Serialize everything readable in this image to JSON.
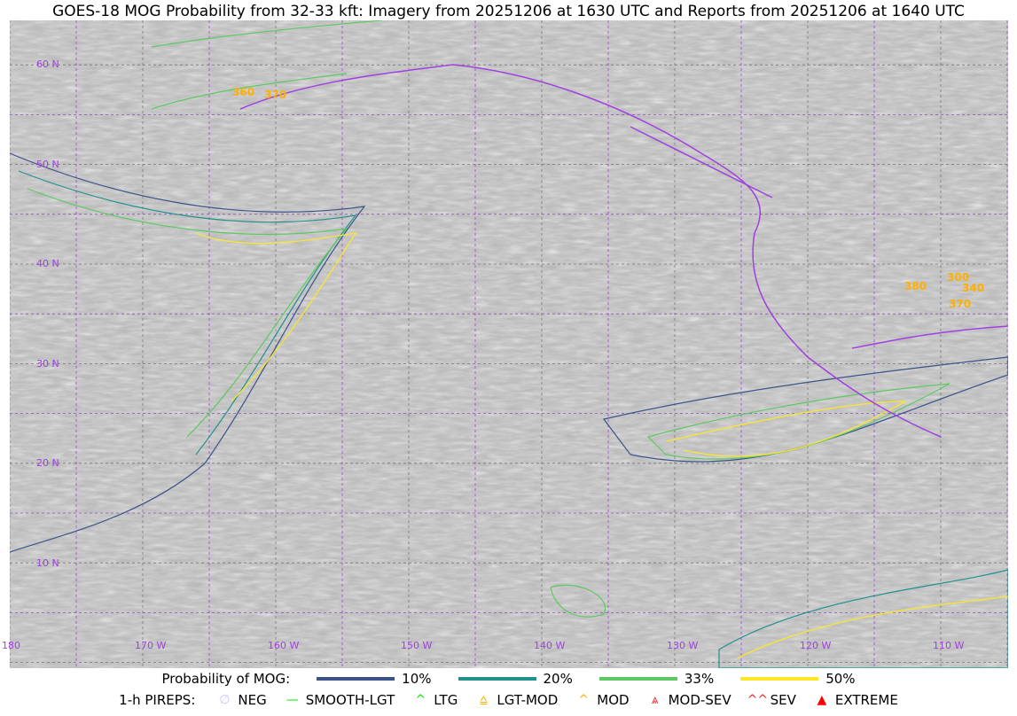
{
  "title": "GOES-18 MOG Probability from 32-33 kft: Imagery from 20251206 at 1630 UTC and Reports from 20251206 at 1640 UTC",
  "lat_labels": [
    "60 N",
    "50 N",
    "40 N",
    "30 N",
    "20 N",
    "10 N"
  ],
  "lon_labels": [
    "180",
    "170 W",
    "160 W",
    "150 W",
    "140 W",
    "130 W",
    "120 W",
    "110 W"
  ],
  "reports": [
    {
      "alt": "360",
      "type": "MOD"
    },
    {
      "alt": "370",
      "type": "MOD"
    },
    {
      "alt": "380",
      "type": "MOD"
    },
    {
      "alt": "300",
      "type": "LGT-MOD"
    },
    {
      "alt": "340",
      "type": "LGT-MOD"
    },
    {
      "alt": "370",
      "type": "MOD"
    }
  ],
  "legend": {
    "prob_label": "Probability of MOG:",
    "levels": [
      {
        "label": "10%",
        "color": "#3b528b"
      },
      {
        "label": "20%",
        "color": "#21918c"
      },
      {
        "label": "33%",
        "color": "#5ec962"
      },
      {
        "label": "50%",
        "color": "#fde725"
      }
    ],
    "pireps_label": "1-h PIREPS:",
    "pireps": [
      {
        "label": "NEG",
        "color": "#c8c8ff",
        "icon": "neg-icon"
      },
      {
        "label": "SMOOTH-LGT",
        "color": "#00ee00",
        "icon": "line-icon"
      },
      {
        "label": "LTG",
        "color": "#00ee00",
        "icon": "caret-icon"
      },
      {
        "label": "LGT-MOD",
        "color": "#ffb000",
        "icon": "caret-bar-icon"
      },
      {
        "label": "MOD",
        "color": "#ffb000",
        "icon": "caret-icon"
      },
      {
        "label": "MOD-SEV",
        "color": "#ff2020",
        "icon": "double-caret-bar-icon"
      },
      {
        "label": "SEV",
        "color": "#ff2020",
        "icon": "double-caret-icon"
      },
      {
        "label": "EXTREME",
        "color": "#ff0000",
        "icon": "triangle-icon"
      }
    ]
  },
  "colors": {
    "boundaries": "#a040e0"
  }
}
